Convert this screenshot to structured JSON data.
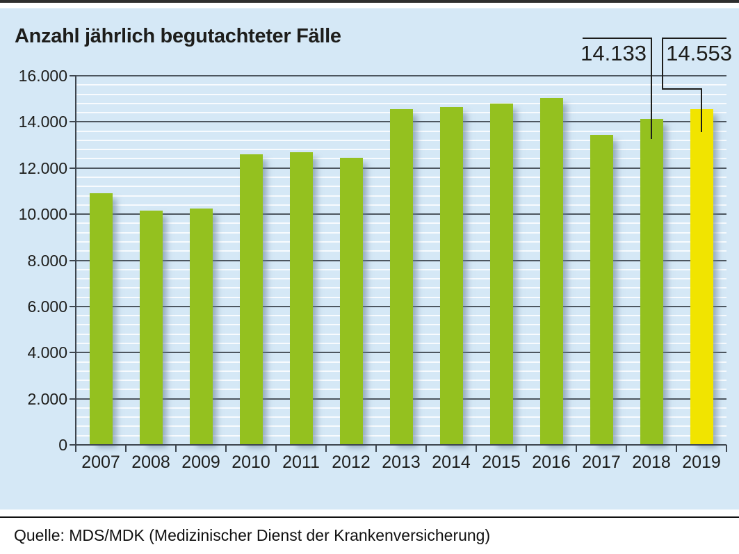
{
  "chart_data": {
    "type": "bar",
    "title": "Anzahl jährlich begutachteter Fälle",
    "xlabel": "",
    "ylabel": "",
    "categories": [
      "2007",
      "2008",
      "2009",
      "2010",
      "2011",
      "2012",
      "2013",
      "2014",
      "2015",
      "2016",
      "2017",
      "2018",
      "2019"
    ],
    "values": [
      10900,
      10150,
      10250,
      12600,
      12700,
      12450,
      14550,
      14650,
      14800,
      15050,
      13450,
      14133,
      14553
    ],
    "ylim": [
      0,
      16000
    ],
    "ytick_step": 2000,
    "minor_grid_step": 400,
    "grid": true,
    "legend": "none",
    "ytick_labels": [
      "0",
      "2.000",
      "4.000",
      "6.000",
      "8.000",
      "10.000",
      "12.000",
      "14.000",
      "16.000"
    ],
    "bar_color": "#94c11f",
    "highlight_category": "2019",
    "highlight_bar_color": "#f1e400",
    "callouts": [
      {
        "category": "2018",
        "label": "14.133"
      },
      {
        "category": "2019",
        "label": "14.553"
      }
    ],
    "colors": {
      "panel_background": "#d5e8f6",
      "major_gridline": "#4d565f",
      "minor_gridline": "#ffffff",
      "axis": "#3d454e",
      "text": "#1d1d1b"
    },
    "source": "Quelle: MDS/MDK (Medizinischer Dienst der Krankenversicherung)"
  }
}
